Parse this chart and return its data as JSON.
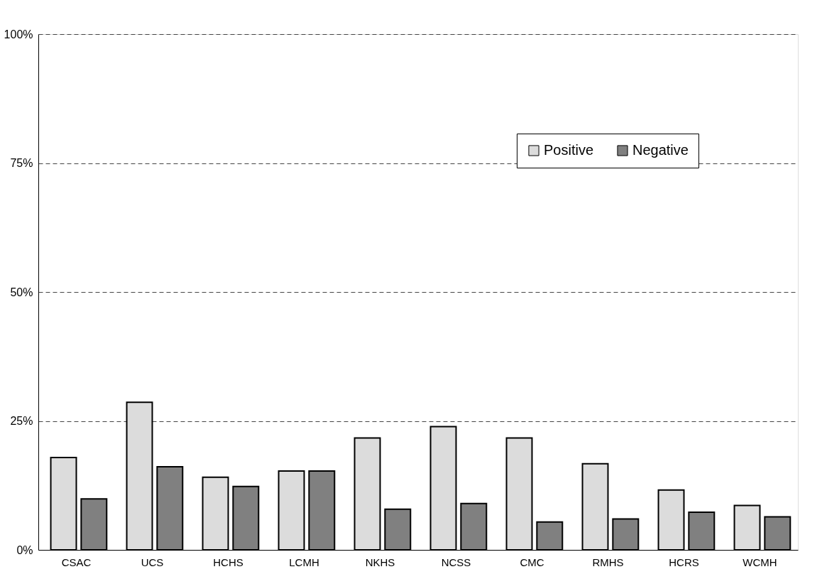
{
  "chart_data": {
    "type": "bar",
    "categories": [
      "CSAC",
      "UCS",
      "HCHS",
      "LCMH",
      "NKHS",
      "NCSS",
      "CMC",
      "RMHS",
      "HCRS",
      "WCMH"
    ],
    "series": [
      {
        "name": "Positive",
        "color": "#dcdcdc",
        "values": [
          17.9,
          28.6,
          14.1,
          15.3,
          21.7,
          23.9,
          21.7,
          16.7,
          11.6,
          8.6
        ]
      },
      {
        "name": "Negative",
        "color": "#808080",
        "values": [
          9.9,
          16.1,
          12.3,
          15.3,
          7.9,
          9.0,
          5.4,
          6.0,
          7.3,
          6.4
        ]
      }
    ],
    "ylim": [
      0,
      100
    ],
    "yticks": [
      {
        "value": 0,
        "label": "0%"
      },
      {
        "value": 25,
        "label": "25%"
      },
      {
        "value": 50,
        "label": "50%"
      },
      {
        "value": 75,
        "label": "75%"
      },
      {
        "value": 100,
        "label": "100%"
      }
    ],
    "grid": "y",
    "legend": "top right"
  }
}
